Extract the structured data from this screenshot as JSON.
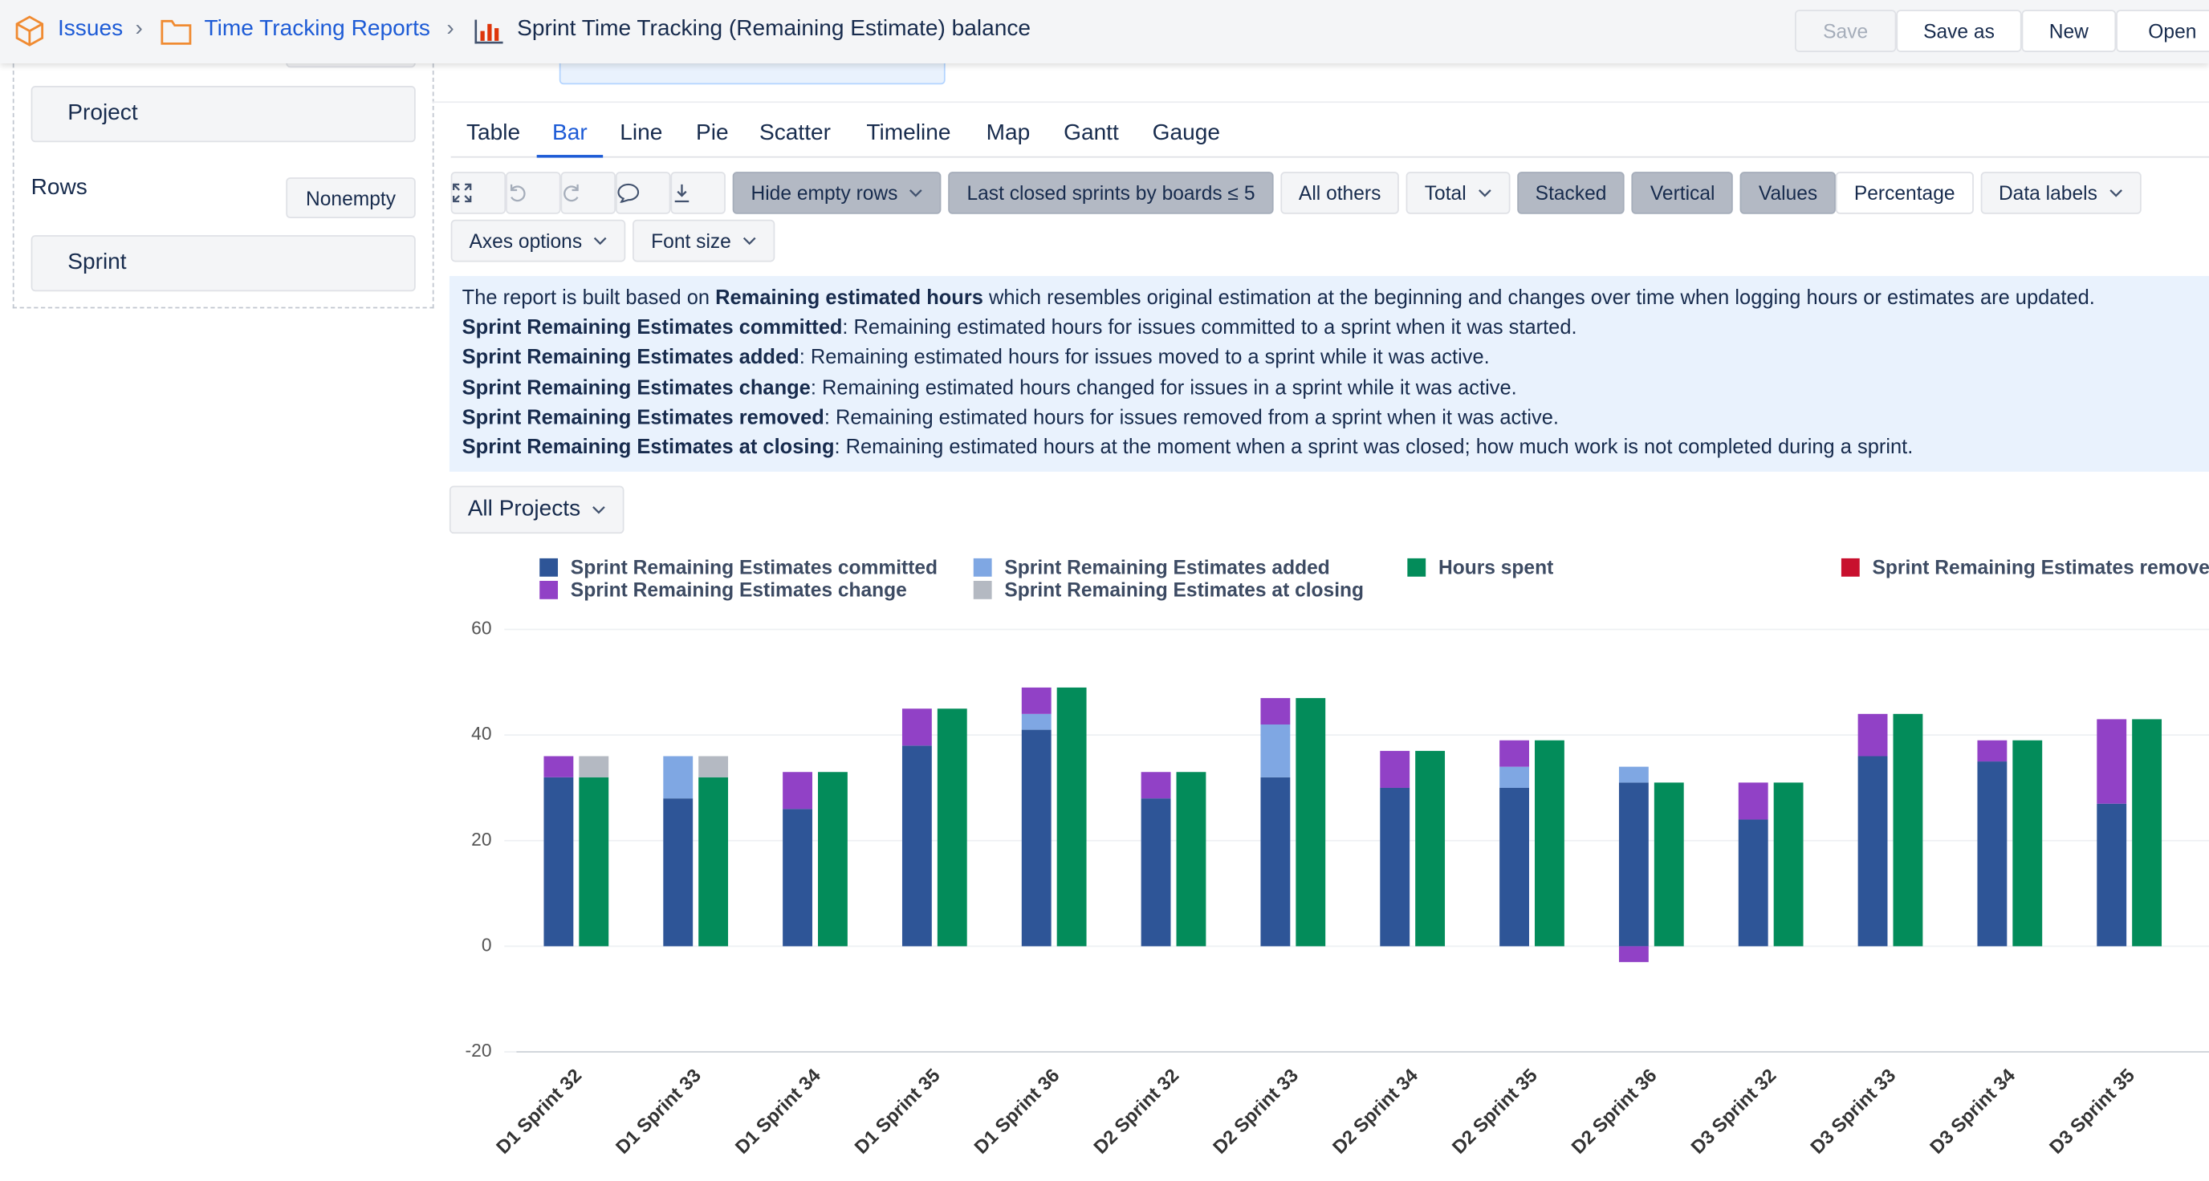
{
  "breadcrumb": [
    "Issues",
    "Time Tracking Reports",
    "Sprint Time Tracking (Remaining Estimate) balance"
  ],
  "actions": [
    "Save",
    "Save as",
    "New",
    "Open"
  ],
  "sidebar": {
    "project": "Project",
    "rows": "Rows",
    "nonempty": "Nonempty",
    "sprint": "Sprint"
  },
  "tabs": [
    "Table",
    "Bar",
    "Line",
    "Pie",
    "Scatter",
    "Timeline",
    "Map",
    "Gantt",
    "Gauge"
  ],
  "toolbar": [
    [
      {
        "label": "Hide empty rows",
        "active": true,
        "dropdown": true
      },
      {
        "label": "Last closed sprints by boards ≤ 5",
        "active": true,
        "dropdown": false
      },
      {
        "label": "All others",
        "active": false,
        "dropdown": false
      },
      {
        "label": "Total",
        "active": false,
        "dropdown": true
      },
      {
        "label": "Stacked",
        "active": true,
        "dropdown": false
      },
      {
        "label": "Vertical",
        "active": true,
        "dropdown": false
      },
      {
        "label": "Values",
        "active": true,
        "dropdown": false
      },
      {
        "label": "Percentage",
        "active": false,
        "dropdown": false
      },
      {
        "label": "Data labels",
        "active": false,
        "dropdown": true
      }
    ],
    [
      {
        "label": "Axes options",
        "active": false,
        "dropdown": true
      },
      {
        "label": "Font size",
        "active": false,
        "dropdown": true
      }
    ]
  ],
  "info": [
    [
      {
        "text": "The report is built based on ",
        "bold": false
      },
      {
        "text": "Remaining estimated hours",
        "bold": true
      },
      {
        "text": " which resembles original estimation at the beginning and changes over time when logging hours or estimates are updated.",
        "bold": false
      }
    ],
    [
      {
        "text": "Sprint Remaining Estimates committed",
        "bold": true
      },
      {
        "text": ": Remaining estimated hours for issues committed to a sprint when it was started.",
        "bold": false
      }
    ],
    [
      {
        "text": "Sprint Remaining Estimates added",
        "bold": true
      },
      {
        "text": ": Remaining estimated hours for issues moved to a sprint while it was active.",
        "bold": false
      }
    ],
    [
      {
        "text": "Sprint Remaining Estimates change",
        "bold": true
      },
      {
        "text": ": Remaining estimated hours changed for issues in a sprint while it was active.",
        "bold": false
      }
    ],
    [
      {
        "text": "Sprint Remaining Estimates removed",
        "bold": true
      },
      {
        "text": ": Remaining estimated hours for issues removed from a sprint when it was active.",
        "bold": false
      }
    ],
    [
      {
        "text": "Sprint Remaining Estimates at closing",
        "bold": true
      },
      {
        "text": ": Remaining estimated hours at the moment when a sprint was closed; how much work is not completed during a sprint.",
        "bold": false
      }
    ]
  ],
  "project_filter": "All Projects",
  "chart_data": {
    "type": "bar",
    "stacked": true,
    "categories": [
      "D1 Sprint 32",
      "D1 Sprint 33",
      "D1 Sprint 34",
      "D1 Sprint 35",
      "D1 Sprint 36",
      "D2 Sprint 32",
      "D2 Sprint 33",
      "D2 Sprint 34",
      "D2 Sprint 35",
      "D2 Sprint 36",
      "D3 Sprint 32",
      "D3 Sprint 33",
      "D3 Sprint 34",
      "D3 Sprint 35"
    ],
    "series": [
      {
        "name": "Sprint Remaining Estimates committed",
        "color": "#2e5597",
        "stack": "estimates",
        "values": [
          32,
          28,
          26,
          38,
          41,
          28,
          32,
          30,
          30,
          31,
          24,
          36,
          35,
          27
        ]
      },
      {
        "name": "Sprint Remaining Estimates added",
        "color": "#7fa7e3",
        "stack": "estimates",
        "values": [
          0,
          8,
          0,
          0,
          3,
          0,
          10,
          0,
          4,
          3,
          0,
          0,
          0,
          0
        ]
      },
      {
        "name": "Hours spent",
        "color": "#038c5a",
        "stack": "spent",
        "values": [
          32,
          32,
          33,
          45,
          49,
          33,
          47,
          37,
          39,
          31,
          31,
          44,
          39,
          43
        ]
      },
      {
        "name": "Sprint Remaining Estimates removed",
        "color": "#c8102e",
        "stack": "estimates",
        "values": [
          0,
          0,
          0,
          0,
          0,
          0,
          0,
          0,
          0,
          0,
          0,
          0,
          0,
          0
        ]
      },
      {
        "name": "Sprint Remaining Estimates change",
        "color": "#9141c6",
        "stack": "estimates",
        "values": [
          4,
          0,
          7,
          7,
          5,
          5,
          5,
          7,
          5,
          -3,
          7,
          8,
          4,
          16
        ]
      },
      {
        "name": "Sprint Remaining Estimates at closing",
        "color": "#b4b9c2",
        "stack": "spent",
        "values": [
          4,
          4,
          0,
          0,
          0,
          0,
          0,
          0,
          0,
          0,
          0,
          0,
          0,
          0
        ]
      }
    ],
    "ylim": [
      -20,
      60
    ],
    "yticks": [
      -20,
      0,
      20,
      40,
      60
    ],
    "grid": true,
    "legend": "top"
  }
}
